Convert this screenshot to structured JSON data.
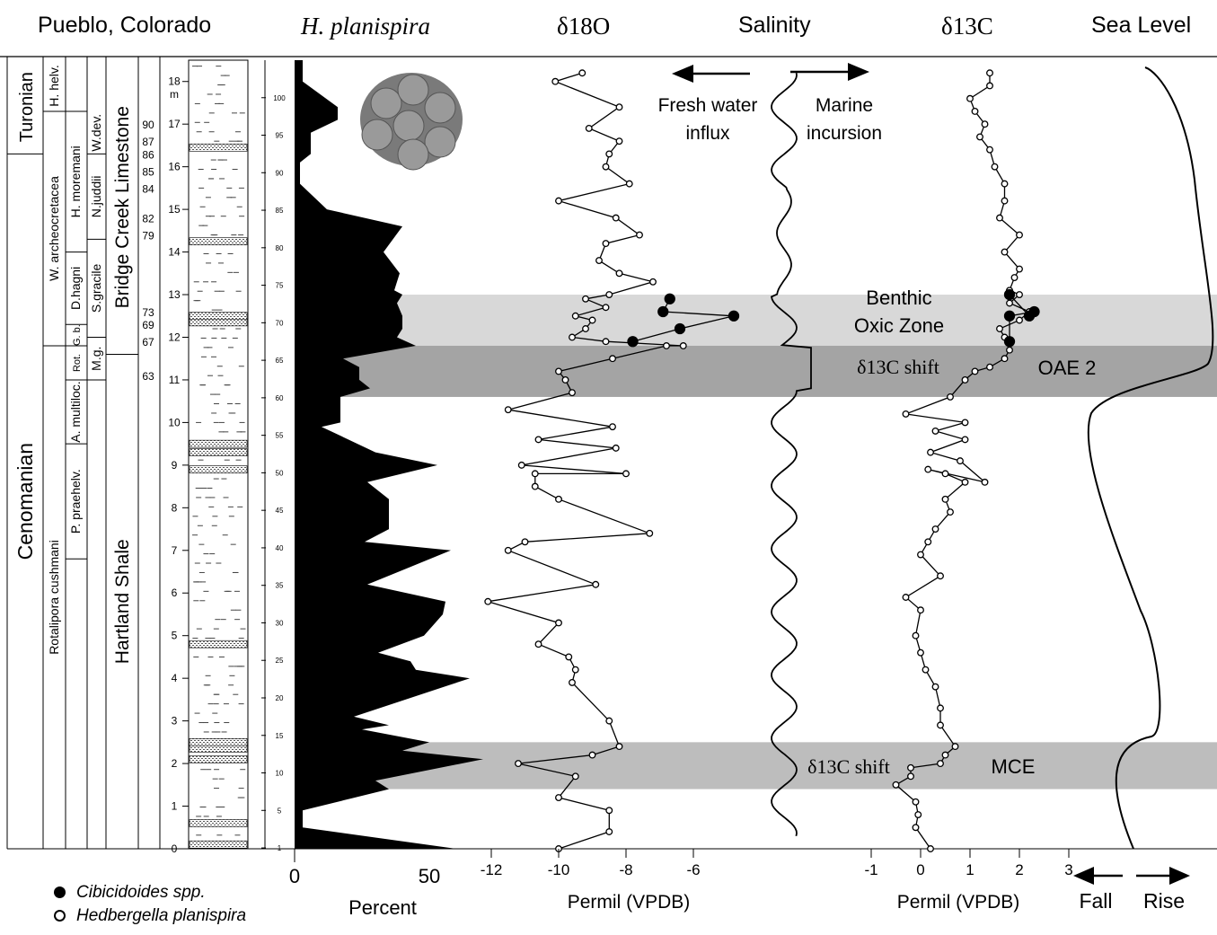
{
  "headers": {
    "location": "Pueblo, Colorado",
    "species": "H. planispira",
    "d18o": "δ18O",
    "salinity": "Salinity",
    "d13c": "δ13C",
    "sea_level": "Sea Level"
  },
  "stratigraphy": {
    "stages": [
      {
        "label": "Turonian",
        "from_m": 16.3,
        "to_m": 18.5
      },
      {
        "label": "Cenomanian",
        "from_m": 0,
        "to_m": 16.3
      }
    ],
    "zones": [
      {
        "label": "H. helv.",
        "from_m": 17.3,
        "to_m": 18.5
      },
      {
        "label": "W. archeocretacea",
        "from_m": 11.8,
        "to_m": 17.3
      },
      {
        "label": "Rotalipora cushmani",
        "from_m": 0,
        "to_m": 11.8
      }
    ],
    "subzones": [
      {
        "label": "H. moremani",
        "from_m": 14.0,
        "to_m": 17.3
      },
      {
        "label": "D.hagni",
        "from_m": 12.3,
        "to_m": 14.0
      },
      {
        "label": "G. b.",
        "from_m": 11.8,
        "to_m": 12.3
      },
      {
        "label": "Rot.",
        "from_m": 11.0,
        "to_m": 11.8
      },
      {
        "label": "A. multiloc.",
        "from_m": 9.5,
        "to_m": 11.0
      },
      {
        "label": "P. praehelv.",
        "from_m": 6.8,
        "to_m": 9.5
      }
    ],
    "zones_right": [
      {
        "label": "W.dev.",
        "from_m": 16.3,
        "to_m": 17.3
      },
      {
        "label": "N.juddii",
        "from_m": 14.3,
        "to_m": 16.3
      },
      {
        "label": "S.gracile",
        "from_m": 12.0,
        "to_m": 14.3
      },
      {
        "label": "M.g.",
        "from_m": 11.0,
        "to_m": 12.0
      }
    ],
    "formations": [
      {
        "label": "Bridge Creek Limestone",
        "from_m": 11.6,
        "to_m": 18.5
      },
      {
        "label": "Hartland Shale",
        "from_m": 0,
        "to_m": 11.6
      }
    ],
    "bed_numbers": [
      {
        "label": "90",
        "m": 17.0
      },
      {
        "label": "87",
        "m": 16.6
      },
      {
        "label": "86",
        "m": 16.3
      },
      {
        "label": "85",
        "m": 15.9
      },
      {
        "label": "84",
        "m": 15.5
      },
      {
        "label": "82",
        "m": 14.8
      },
      {
        "label": "79",
        "m": 14.4
      },
      {
        "label": "73",
        "m": 12.6
      },
      {
        "label": "69",
        "m": 12.3
      },
      {
        "label": "67",
        "m": 11.9
      },
      {
        "label": "63",
        "m": 11.1
      }
    ],
    "meter_ticks": [
      "0",
      "1",
      "2",
      "3",
      "4",
      "5",
      "6",
      "7",
      "8",
      "9",
      "10",
      "11",
      "12",
      "13",
      "14",
      "15",
      "16",
      "17",
      "18"
    ],
    "meter_unit": "m",
    "sample_ticks": [
      "1",
      "5",
      "10",
      "15",
      "20",
      "25",
      "30",
      "35",
      "40",
      "45",
      "50",
      "55",
      "60",
      "65",
      "70",
      "75",
      "80",
      "85",
      "90",
      "95",
      "100"
    ]
  },
  "bands": [
    {
      "from_m": 11.8,
      "to_m": 13.0,
      "shade": "#d8d8d8",
      "labels": [
        "Benthic",
        "Oxic Zone"
      ]
    },
    {
      "from_m": 10.6,
      "to_m": 11.8,
      "shade": "#a4a4a4",
      "labels": [
        "δ13C shift",
        "OAE 2"
      ]
    },
    {
      "from_m": 1.4,
      "to_m": 2.5,
      "shade": "#bdbdbd",
      "labels": [
        "δ13C shift",
        "MCE"
      ]
    }
  ],
  "salinity_labels": {
    "fresh": [
      "Fresh water",
      "influx"
    ],
    "marine": [
      "Marine",
      "incursion"
    ]
  },
  "axes": {
    "percent_title": "Percent",
    "percent_ticks": [
      "0",
      "50"
    ],
    "d18o_title": "Permil (VPDB)",
    "d18o_ticks": [
      "-12",
      "-10",
      "-8",
      "-6"
    ],
    "d13c_title": "Permil (VPDB)",
    "d13c_ticks": [
      "-1",
      "0",
      "1",
      "2",
      "3"
    ],
    "sea_fall": "Fall",
    "sea_rise": "Rise"
  },
  "legend": [
    {
      "symbol": "filled",
      "label": "Cibicidoides spp."
    },
    {
      "symbol": "open",
      "label": "Hedbergella planispira"
    }
  ],
  "chart_data": [
    {
      "type": "area",
      "series": [
        {
          "name": "H. planispira",
          "unit": "Percent"
        }
      ],
      "xlim": [
        0,
        60
      ],
      "ylim": [
        0,
        18.5
      ],
      "points": [
        [
          60,
          0
        ],
        [
          3,
          0.5
        ],
        [
          3,
          0.9
        ],
        [
          35,
          1.4
        ],
        [
          30,
          1.6
        ],
        [
          70,
          2.1
        ],
        [
          40,
          2.3
        ],
        [
          50,
          2.5
        ],
        [
          25,
          2.8
        ],
        [
          35,
          2.9
        ],
        [
          22,
          3.1
        ],
        [
          65,
          4.0
        ],
        [
          45,
          4.2
        ],
        [
          43,
          4.4
        ],
        [
          31,
          4.6
        ],
        [
          48,
          5.0
        ],
        [
          55,
          5.5
        ],
        [
          56,
          5.8
        ],
        [
          27,
          6.2
        ],
        [
          58,
          7.0
        ],
        [
          26,
          7.2
        ],
        [
          35,
          7.5
        ],
        [
          35,
          8.2
        ],
        [
          27,
          8.6
        ],
        [
          53,
          9.0
        ],
        [
          30,
          9.3
        ],
        [
          10,
          9.9
        ],
        [
          17,
          10.0
        ],
        [
          17,
          10.6
        ],
        [
          28,
          10.8
        ],
        [
          24,
          11.0
        ],
        [
          24,
          11.3
        ],
        [
          18,
          11.5
        ],
        [
          45,
          11.8
        ],
        [
          38,
          12.0
        ],
        [
          40,
          12.2
        ],
        [
          40,
          12.5
        ],
        [
          38,
          12.8
        ],
        [
          40,
          13.0
        ],
        [
          37,
          13.1
        ],
        [
          39,
          13.5
        ],
        [
          33,
          14.0
        ],
        [
          40,
          14.6
        ],
        [
          12,
          15.0
        ],
        [
          2,
          15.6
        ],
        [
          2,
          16.1
        ],
        [
          6,
          16.3
        ],
        [
          6,
          16.8
        ],
        [
          16,
          17.1
        ],
        [
          16,
          17.4
        ],
        [
          3,
          18.0
        ],
        [
          3,
          18.5
        ]
      ]
    },
    {
      "type": "line",
      "series": [
        {
          "name": "Hedbergella planispira",
          "points": [
            [
              -10.0,
              0.0
            ],
            [
              -8.5,
              0.4
            ],
            [
              -8.5,
              0.9
            ],
            [
              -10.0,
              1.2
            ],
            [
              -9.5,
              1.7
            ],
            [
              -11.2,
              2.0
            ],
            [
              -9.0,
              2.2
            ],
            [
              -8.2,
              2.4
            ],
            [
              -8.5,
              3.0
            ],
            [
              -9.6,
              3.9
            ],
            [
              -9.5,
              4.2
            ],
            [
              -9.7,
              4.5
            ],
            [
              -10.6,
              4.8
            ],
            [
              -10.0,
              5.3
            ],
            [
              -12.1,
              5.8
            ],
            [
              -8.9,
              6.2
            ],
            [
              -11.5,
              7.0
            ],
            [
              -11.0,
              7.2
            ],
            [
              -7.3,
              7.4
            ],
            [
              -10.0,
              8.2
            ],
            [
              -10.7,
              8.5
            ],
            [
              -10.7,
              8.8
            ],
            [
              -8.0,
              8.8
            ],
            [
              -11.1,
              9.0
            ],
            [
              -8.3,
              9.4
            ],
            [
              -10.6,
              9.6
            ],
            [
              -8.4,
              9.9
            ],
            [
              -11.5,
              10.3
            ],
            [
              -9.6,
              10.7
            ],
            [
              -9.8,
              11.0
            ],
            [
              -10.0,
              11.2
            ],
            [
              -8.4,
              11.5
            ],
            [
              -6.8,
              11.8
            ],
            [
              -6.3,
              11.8
            ],
            [
              -8.6,
              11.9
            ],
            [
              -9.6,
              12.0
            ],
            [
              -9.2,
              12.2
            ],
            [
              -9.0,
              12.4
            ],
            [
              -9.5,
              12.5
            ],
            [
              -8.6,
              12.7
            ],
            [
              -9.2,
              12.9
            ],
            [
              -8.5,
              13.0
            ],
            [
              -7.2,
              13.3
            ],
            [
              -8.2,
              13.5
            ],
            [
              -8.8,
              13.8
            ],
            [
              -8.6,
              14.2
            ],
            [
              -7.6,
              14.4
            ],
            [
              -8.3,
              14.8
            ],
            [
              -10.0,
              15.2
            ],
            [
              -7.9,
              15.6
            ],
            [
              -8.6,
              16.0
            ],
            [
              -8.5,
              16.3
            ],
            [
              -8.2,
              16.6
            ],
            [
              -9.1,
              16.9
            ],
            [
              -8.2,
              17.4
            ],
            [
              -10.1,
              18.0
            ],
            [
              -9.3,
              18.2
            ]
          ]
        },
        {
          "name": "Cibicidoides spp.",
          "points": [
            [
              -7.8,
              11.9
            ],
            [
              -6.4,
              12.2
            ],
            [
              -4.8,
              12.5
            ],
            [
              -6.9,
              12.6
            ],
            [
              -6.7,
              12.9
            ]
          ]
        }
      ],
      "xlim": [
        -12.5,
        -4.5
      ],
      "ylim": [
        0,
        18.5
      ],
      "xlabel": "Permil (VPDB)",
      "title": "δ18O"
    },
    {
      "type": "line",
      "series": [
        {
          "name": "Hedbergella planispira",
          "points": [
            [
              0.2,
              0.0
            ],
            [
              -0.1,
              0.5
            ],
            [
              -0.05,
              0.8
            ],
            [
              -0.1,
              1.1
            ],
            [
              -0.5,
              1.5
            ],
            [
              -0.2,
              1.7
            ],
            [
              -0.2,
              1.9
            ],
            [
              0.4,
              2.0
            ],
            [
              0.5,
              2.2
            ],
            [
              0.7,
              2.4
            ],
            [
              0.4,
              2.9
            ],
            [
              0.4,
              3.3
            ],
            [
              0.3,
              3.8
            ],
            [
              0.1,
              4.2
            ],
            [
              0.0,
              4.6
            ],
            [
              -0.1,
              5.0
            ],
            [
              0.0,
              5.6
            ],
            [
              -0.3,
              5.9
            ],
            [
              0.4,
              6.4
            ],
            [
              0.0,
              6.9
            ],
            [
              0.15,
              7.2
            ],
            [
              0.3,
              7.5
            ],
            [
              0.6,
              7.9
            ],
            [
              0.5,
              8.2
            ],
            [
              0.9,
              8.6
            ],
            [
              0.5,
              8.8
            ],
            [
              0.15,
              8.9
            ],
            [
              1.3,
              8.6
            ],
            [
              0.8,
              9.1
            ],
            [
              0.2,
              9.3
            ],
            [
              0.9,
              9.6
            ],
            [
              0.3,
              9.8
            ],
            [
              0.9,
              10.0
            ],
            [
              -0.3,
              10.2
            ],
            [
              0.6,
              10.6
            ],
            [
              0.9,
              11.0
            ],
            [
              1.1,
              11.2
            ],
            [
              1.4,
              11.3
            ],
            [
              1.7,
              11.5
            ],
            [
              1.8,
              11.7
            ],
            [
              1.7,
              12.0
            ],
            [
              1.6,
              12.2
            ],
            [
              2.0,
              12.4
            ],
            [
              2.2,
              12.6
            ],
            [
              1.8,
              12.8
            ],
            [
              2.0,
              13.0
            ],
            [
              1.8,
              13.1
            ],
            [
              1.9,
              13.4
            ],
            [
              2.0,
              13.6
            ],
            [
              1.7,
              14.0
            ],
            [
              2.0,
              14.4
            ],
            [
              1.6,
              14.8
            ],
            [
              1.7,
              15.2
            ],
            [
              1.7,
              15.6
            ],
            [
              1.5,
              16.0
            ],
            [
              1.4,
              16.4
            ],
            [
              1.2,
              16.7
            ],
            [
              1.3,
              17.0
            ],
            [
              1.1,
              17.3
            ],
            [
              1.0,
              17.6
            ],
            [
              1.4,
              17.9
            ],
            [
              1.4,
              18.2
            ]
          ]
        },
        {
          "name": "Cibicidoides spp.",
          "points": [
            [
              1.8,
              11.9
            ],
            [
              1.8,
              12.5
            ],
            [
              2.3,
              12.6
            ],
            [
              2.2,
              12.5
            ],
            [
              1.8,
              13.0
            ]
          ]
        }
      ],
      "xlim": [
        -1,
        3
      ],
      "ylim": [
        0,
        18.5
      ],
      "xlabel": "Permil (VPDB)",
      "title": "δ13C"
    }
  ]
}
